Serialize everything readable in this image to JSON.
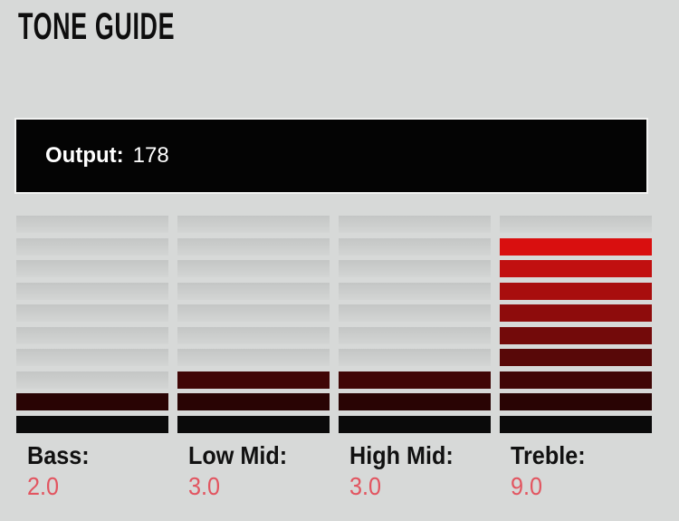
{
  "title": "TONE GUIDE",
  "output": {
    "label": "Output:",
    "value": "178"
  },
  "meter": {
    "segments_per_band": 10,
    "row_colors_top_to_bottom": [
      "#ec1313",
      "#d90f0f",
      "#c11010",
      "#a80e0e",
      "#8e0c0c",
      "#730a0a",
      "#580808",
      "#400606",
      "#290404",
      "#0a0a0a"
    ],
    "bands": [
      {
        "id": "bass",
        "label": "Bass:",
        "value": "2.0",
        "lit_segments": 2
      },
      {
        "id": "low-mid",
        "label": "Low Mid:",
        "value": "3.0",
        "lit_segments": 3
      },
      {
        "id": "high-mid",
        "label": "High Mid:",
        "value": "3.0",
        "lit_segments": 3
      },
      {
        "id": "treble",
        "label": "Treble:",
        "value": "9.0",
        "lit_segments": 9
      }
    ]
  },
  "colors": {
    "page_background": "#d7d9d8",
    "title_text": "#0e0e0e",
    "output_bar_background": "#040404",
    "output_text": "#ffffff",
    "unlit_segment_top": "#c4c6c5",
    "unlit_segment_bottom": "#d3d5d4",
    "band_label_text": "#111111",
    "band_value_text": "#e25560"
  }
}
